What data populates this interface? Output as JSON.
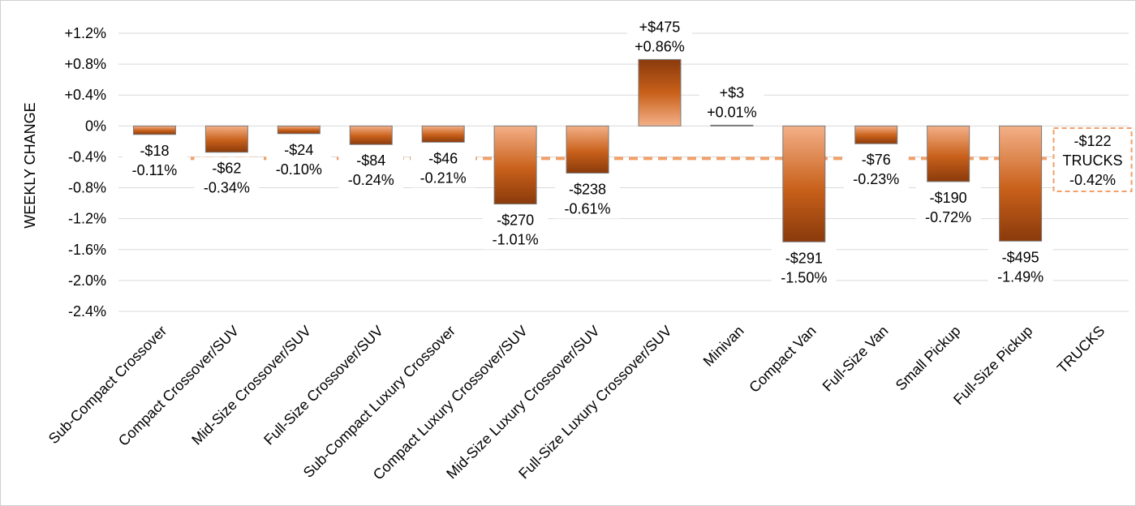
{
  "chart_data": {
    "type": "bar",
    "title": "",
    "xlabel": "",
    "ylabel": "WEEKLY CHANGE",
    "ylim": [
      -2.4,
      1.2
    ],
    "yticks": [
      1.2,
      0.8,
      0.4,
      0,
      -0.4,
      -0.8,
      -1.2,
      -1.6,
      -2.0,
      -2.4
    ],
    "ytick_labels": [
      "+1.2%",
      "+0.8%",
      "+0.4%",
      "0%",
      "-0.4%",
      "-0.8%",
      "-1.2%",
      "-1.6%",
      "-2.0%",
      "-2.4%"
    ],
    "grid": true,
    "categories": [
      "Sub-Compact Crossover",
      "Compact Crossover/SUV",
      "Mid-Size Crossover/SUV",
      "Full-Size Crossover/SUV",
      "Sub-Compact Luxury Crossover",
      "Compact Luxury Crossover/SUV",
      "Mid-Size Luxury Crossover/SUV",
      "Full-Size Luxury Crossover/SUV",
      "Minivan",
      "Compact Van",
      "Full-Size Van",
      "Small Pickup",
      "Full-Size Pickup",
      "TRUCKS"
    ],
    "values": [
      -0.11,
      -0.34,
      -0.1,
      -0.24,
      -0.21,
      -1.01,
      -0.61,
      0.86,
      0.01,
      -1.5,
      -0.23,
      -0.72,
      -1.49,
      null
    ],
    "dollar_labels": [
      "-$18",
      "-$62",
      "-$24",
      "-$84",
      "-$46",
      "-$270",
      "-$238",
      "+$475",
      "+$3",
      "-$291",
      "-$76",
      "-$190",
      "-$495"
    ],
    "percent_labels": [
      "-0.11%",
      "-0.34%",
      "-0.10%",
      "-0.24%",
      "-0.21%",
      "-1.01%",
      "-0.61%",
      "+0.86%",
      "+0.01%",
      "-1.50%",
      "-0.23%",
      "-0.72%",
      "-1.49%"
    ],
    "reference_line": {
      "value": -0.42,
      "label_lines": [
        "-$122",
        "TRUCKS",
        "-0.42%"
      ],
      "color": "#f0a06a"
    },
    "colors": {
      "bar_dark": "#8a3a0c",
      "bar_mid": "#c8601a",
      "bar_light": "#f4b088",
      "bar_stroke": "#7a7a7a",
      "grid": "#d9d9d9"
    }
  }
}
